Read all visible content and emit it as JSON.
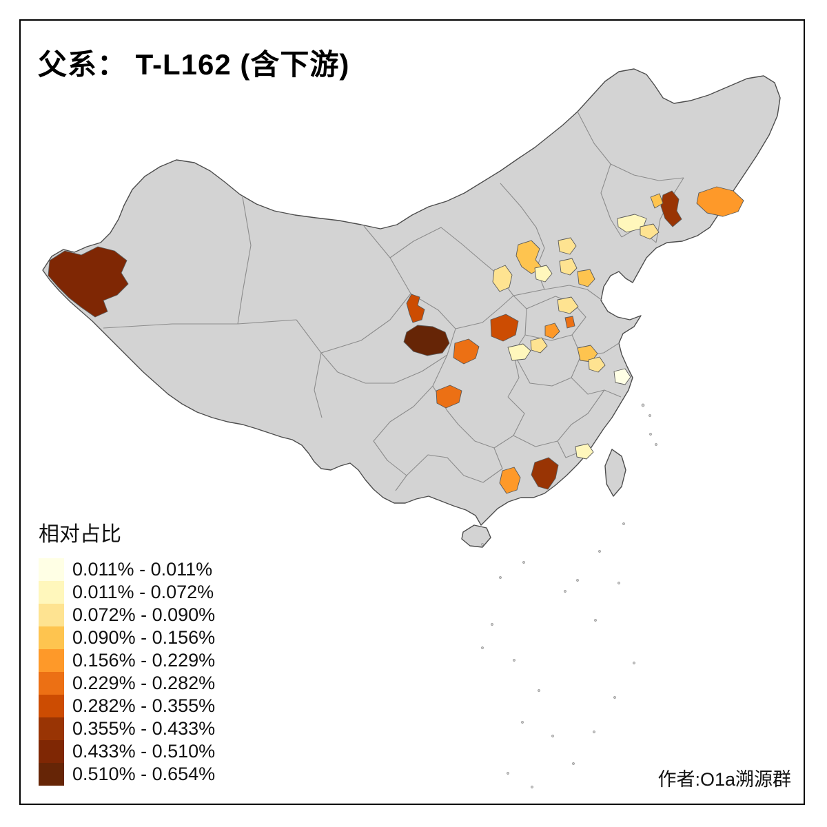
{
  "title": "父系： T-L162 (含下游)",
  "credit": "作者:O1a溯源群",
  "legend": {
    "title": "相对占比",
    "classes": [
      {
        "label": "0.011% - 0.011%",
        "color": "#FFFFE5"
      },
      {
        "label": "0.011% - 0.072%",
        "color": "#FFF7BC"
      },
      {
        "label": "0.072% - 0.090%",
        "color": "#FEE391"
      },
      {
        "label": "0.090% - 0.156%",
        "color": "#FEC44F"
      },
      {
        "label": "0.156% - 0.229%",
        "color": "#FE9929"
      },
      {
        "label": "0.229% - 0.282%",
        "color": "#EC7014"
      },
      {
        "label": "0.282% - 0.355%",
        "color": "#CC4C02"
      },
      {
        "label": "0.355% - 0.433%",
        "color": "#993404"
      },
      {
        "label": "0.433% - 0.510%",
        "color": "#7F2704"
      },
      {
        "label": "0.510% - 0.654%",
        "color": "#662506"
      }
    ]
  },
  "map": {
    "base_fill": "#d3d3d3",
    "boundary_color": "#4d4d4d",
    "province_border_color": "#8c8c8c",
    "background": "#ffffff",
    "regions": [
      {
        "id": "r1",
        "class_index": 8
      },
      {
        "id": "r2",
        "class_index": 9
      },
      {
        "id": "r3",
        "class_index": 6
      },
      {
        "id": "r4",
        "class_index": 6
      },
      {
        "id": "r5",
        "class_index": 5
      },
      {
        "id": "r6",
        "class_index": 5
      },
      {
        "id": "r7",
        "class_index": 7
      },
      {
        "id": "r8",
        "class_index": 7
      },
      {
        "id": "r9",
        "class_index": 4
      },
      {
        "id": "r10",
        "class_index": 4
      },
      {
        "id": "r11",
        "class_index": 3
      },
      {
        "id": "r12",
        "class_index": 3
      },
      {
        "id": "r13",
        "class_index": 3
      },
      {
        "id": "r14",
        "class_index": 3
      },
      {
        "id": "r15",
        "class_index": 4
      },
      {
        "id": "r16",
        "class_index": 5
      },
      {
        "id": "r17",
        "class_index": 0
      },
      {
        "id": "r18",
        "class_index": 1
      },
      {
        "id": "r19",
        "class_index": 2
      },
      {
        "id": "r20",
        "class_index": 2
      },
      {
        "id": "r21",
        "class_index": 1
      },
      {
        "id": "r22",
        "class_index": 2
      },
      {
        "id": "r23",
        "class_index": 2
      },
      {
        "id": "r24",
        "class_index": 2
      },
      {
        "id": "r25",
        "class_index": 2
      },
      {
        "id": "r26",
        "class_index": 1
      },
      {
        "id": "r27",
        "class_index": 2
      },
      {
        "id": "r28",
        "class_index": 1
      }
    ]
  }
}
